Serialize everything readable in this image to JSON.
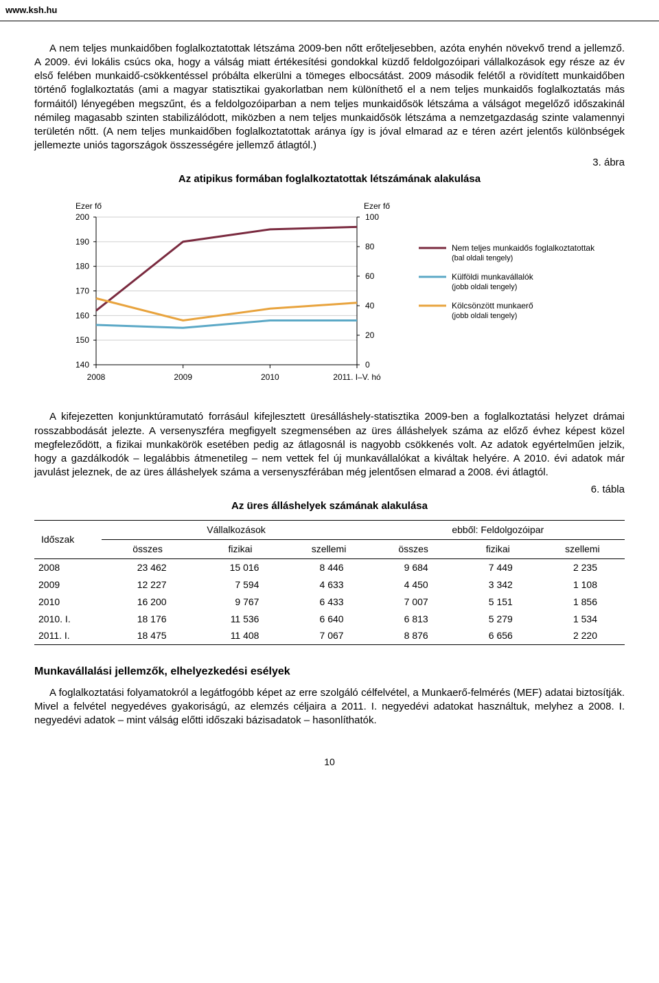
{
  "header": {
    "url": "www.ksh.hu"
  },
  "para1": "A nem teljes munkaidőben foglalkoztatottak létszáma 2009-ben nőtt erőteljesebben, azóta enyhén növekvő trend a jellemző. A 2009. évi lokális csúcs oka, hogy a válság miatt értékesítési gondokkal küzdő feldolgozóipari vállalkozások egy része az év első felében munkaidő-csökkentéssel próbálta elkerülni a tömeges elbocsátást. 2009 második felétől a rövidített munkaidőben történő foglalkoztatás (ami a magyar statisztikai gyakorlatban nem különíthető el a nem teljes munkaidős foglalkoztatás más formáitól) lényegében megszűnt, és a feldolgozóiparban a nem teljes munkaidősök létszáma a válságot megelőző időszakinál némileg magasabb szinten stabilizálódott, miközben a nem teljes munkaidősök létszáma a nemzetgazdaság szinte valamennyi területén nőtt. (A nem teljes munkaidőben foglalkoztatottak aránya így is jóval elmarad az e téren azért jelentős különbségek jellemezte uniós tagországok összességére jellemző átlagtól.)",
  "figure": {
    "label": "3. ábra",
    "title": "Az atipikus formában foglalkoztatottak létszámának alakulása",
    "left_axis_title": "Ezer fő",
    "right_axis_title": "Ezer fő",
    "x_categories": [
      "2008",
      "2009",
      "2010",
      "2011. I–V. hó"
    ],
    "y_left": {
      "min": 140,
      "max": 200,
      "step": 10
    },
    "y_right": {
      "min": 0,
      "max": 100,
      "step": 20
    },
    "series": [
      {
        "name": "Nem teljes munkaidős foglalkoztatottak",
        "sub": "(bal oldali tengely)",
        "axis": "left",
        "color": "#7a2a3f",
        "values": [
          162,
          190,
          195,
          196
        ]
      },
      {
        "name": "Külföldi munkavállalók",
        "sub": "(jobb oldali tengely)",
        "axis": "right",
        "color": "#5ba8c6",
        "values": [
          27,
          25,
          30,
          30
        ]
      },
      {
        "name": "Kölcsönzött munkaerő",
        "sub": "(jobb oldali tengely)",
        "axis": "right",
        "color": "#e8a33d",
        "values": [
          45,
          30,
          38,
          42
        ]
      }
    ],
    "grid_color": "#cfcfcf",
    "line_width": 3,
    "background": "#ffffff"
  },
  "para2": "A kifejezetten konjunktúramutató forrásául kifejlesztett üresálláshely-statisztika 2009-ben a foglalkoztatási helyzet drámai rosszabbodását jelezte. A versenyszféra megfigyelt szegmensében az üres álláshelyek száma az előző évhez képest közel megfeleződött, a fizikai munkakörök esetében pedig az átlagosnál is nagyobb csökkenés volt. Az adatok egyértelműen jelzik, hogy a gazdálkodók – legalábbis átmenetileg – nem vettek fel új munkavállalókat a kiváltak helyére. A 2010. évi adatok már javulást jeleznek, de az üres álláshelyek száma a versenyszférában még jelentősen elmarad a 2008. évi átlagtól.",
  "table": {
    "label": "6. tábla",
    "title": "Az üres álláshelyek számának alakulása",
    "row_header": "Időszak",
    "group_headers": [
      "Vállalkozások",
      "ebből: Feldolgozóipar"
    ],
    "sub_headers": [
      "összes",
      "fizikai",
      "szellemi",
      "összes",
      "fizikai",
      "szellemi"
    ],
    "rows": [
      {
        "label": "2008",
        "cells": [
          "23 462",
          "15 016",
          "8 446",
          "9 684",
          "7 449",
          "2 235"
        ]
      },
      {
        "label": "2009",
        "cells": [
          "12 227",
          "7 594",
          "4 633",
          "4 450",
          "3 342",
          "1 108"
        ]
      },
      {
        "label": "2010",
        "cells": [
          "16 200",
          "9 767",
          "6 433",
          "7 007",
          "5 151",
          "1 856"
        ]
      },
      {
        "label": "2010. I.",
        "cells": [
          "18 176",
          "11 536",
          "6 640",
          "6 813",
          "5 279",
          "1 534"
        ]
      },
      {
        "label": "2011. I.",
        "cells": [
          "18 475",
          "11 408",
          "7 067",
          "8 876",
          "6 656",
          "2 220"
        ]
      }
    ]
  },
  "section2": {
    "heading": "Munkavállalási jellemzők, elhelyezkedési esélyek",
    "para": "A foglalkoztatási folyamatokról a legátfogóbb képet az erre szolgáló célfelvétel, a Munkaerő-felmérés (MEF) adatai biztosítják. Mivel a felvétel negyedéves gyakoriságú, az elemzés céljaira a 2011. I. negyedévi adatokat használtuk, melyhez a 2008. I. negyedévi adatok – mint válság előtti időszaki bázisadatok – hasonlíthatók."
  },
  "page_number": "10"
}
